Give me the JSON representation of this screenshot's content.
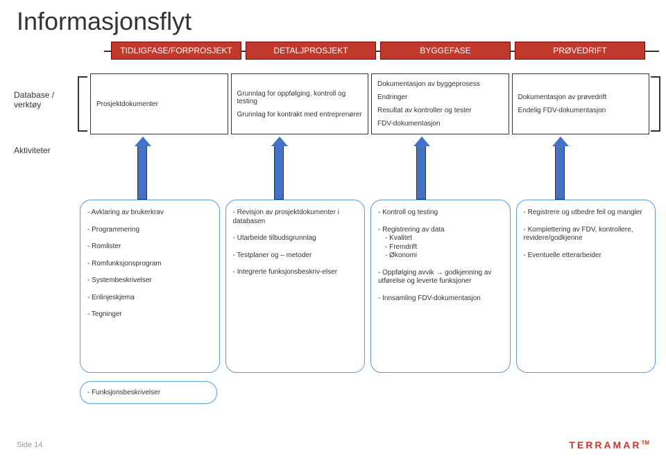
{
  "title": "Informasjonsflyt",
  "colors": {
    "phase_bg": "#c0392b",
    "phase_border": "#800000",
    "phase_text": "#ffffff",
    "arrow_fill": "#4472c4",
    "box_border": "#5b9bd5",
    "text": "#333333",
    "page_bg": "#ffffff",
    "footer_muted": "#999999"
  },
  "phases": [
    "TIDLIGFASE/FORPROSJEKT",
    "DETALJPROSJEKT",
    "BYGGEFASE",
    "PRØVEDRIFT"
  ],
  "rowLabels": {
    "database": "Database / verktøy",
    "aktiviteter": "Aktiviteter"
  },
  "database": {
    "c1": {
      "line1": "Prosjektdokumenter"
    },
    "c2": {
      "line1": "Grunnlag for oppfølging, kontroll og testing",
      "line2": "Grunnlag for kontrakt med entreprenører"
    },
    "c3": {
      "line1": "Dokumentasjon av byggeprosess",
      "line2": "Endringer",
      "line3": "Resultat av kontroller og tester",
      "line4": "FDV-dokumentasjon"
    },
    "c4": {
      "line1": "Dokumentasjon av prøvedrift",
      "line2": "Endelig FDV-dokumentasjon"
    }
  },
  "activities": {
    "col1": [
      "- Avklaring av brukerkrav",
      "- Programmering",
      "- Romlister",
      "- Romfunksjonsprogram",
      "- Systembeskrivelser",
      "- Enlinjeskjema",
      "- Tegninger"
    ],
    "col1_extra": "- Funksjonsbeskrivelser",
    "col2": [
      "- Revisjon av prosjektdokumenter i databasen",
      "- Utarbeide tilbudsgrunnlag",
      "- Testplaner og – metoder",
      "- Integrerte funksjonsbeskriv-elser"
    ],
    "col3": [
      "- Kontroll og testing",
      {
        "head": "- Registrering av data",
        "subs": [
          "- Kvalitet",
          "- Fremdrift",
          "- Økonomi"
        ]
      },
      "- Oppfølging avvik → godkjenning av utførelse og leverte funksjoner",
      "- Innsamling FDV-dokumentasjon"
    ],
    "col4": [
      "- Registrere og utbedre feil og mangler",
      "- Komplettering av FDV, kontrollere, revidere/godkjenne",
      "- Eventuelle etterarbeider"
    ]
  },
  "footer": {
    "pageLabel": "Side 14",
    "brand": "TERRAMAR",
    "tm": "TM"
  }
}
